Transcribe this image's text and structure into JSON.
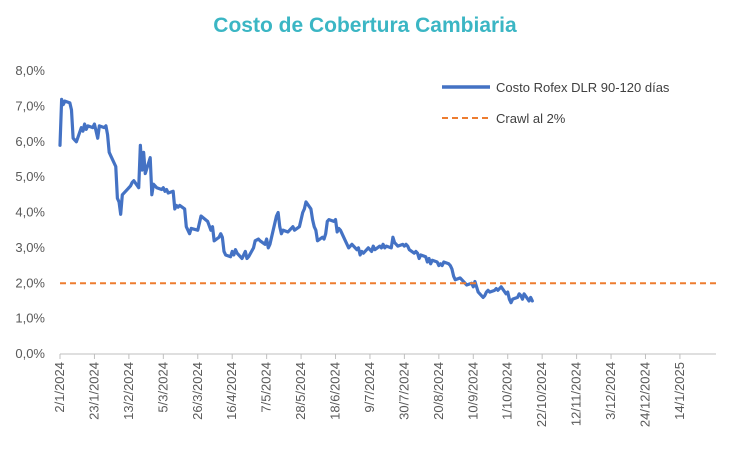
{
  "chart_data": {
    "type": "line",
    "title": "Costo de Cobertura Cambiaria",
    "xlabel": "",
    "ylabel": "",
    "ylim": [
      0,
      8
    ],
    "y_ticks": [
      "0,0%",
      "1,0%",
      "2,0%",
      "3,0%",
      "4,0%",
      "5,0%",
      "6,0%",
      "7,0%",
      "8,0%"
    ],
    "x_ticks": [
      "2/1/2024",
      "23/1/2024",
      "13/2/2024",
      "5/3/2024",
      "26/3/2024",
      "16/4/2024",
      "7/5/2024",
      "28/5/2024",
      "18/6/2024",
      "9/7/2024",
      "30/7/2024",
      "20/8/2024",
      "10/9/2024",
      "1/10/2024",
      "22/10/2024",
      "12/11/2024",
      "3/12/2024",
      "24/12/2024",
      "14/1/2025"
    ],
    "x_range": [
      "2/1/2024",
      "5/2/2025"
    ],
    "legend_position": "top-right",
    "grid": false,
    "series": [
      {
        "name": "Costo Rofex DLR 90-120 días",
        "color": "#4472c4",
        "style": "solid",
        "points": [
          [
            "2/1/2024",
            5.9
          ],
          [
            "3/1/2024",
            7.2
          ],
          [
            "4/1/2024",
            7.05
          ],
          [
            "5/1/2024",
            7.15
          ],
          [
            "8/1/2024",
            7.1
          ],
          [
            "9/1/2024",
            6.9
          ],
          [
            "10/1/2024",
            6.1
          ],
          [
            "11/1/2024",
            6.05
          ],
          [
            "12/1/2024",
            6.0
          ],
          [
            "15/1/2024",
            6.4
          ],
          [
            "16/1/2024",
            6.3
          ],
          [
            "17/1/2024",
            6.5
          ],
          [
            "18/1/2024",
            6.35
          ],
          [
            "19/1/2024",
            6.45
          ],
          [
            "22/1/2024",
            6.4
          ],
          [
            "23/1/2024",
            6.5
          ],
          [
            "24/1/2024",
            6.3
          ],
          [
            "25/1/2024",
            6.1
          ],
          [
            "26/1/2024",
            6.45
          ],
          [
            "29/1/2024",
            6.4
          ],
          [
            "30/1/2024",
            6.45
          ],
          [
            "31/1/2024",
            6.2
          ],
          [
            "1/2/2024",
            5.7
          ],
          [
            "2/2/2024",
            5.6
          ],
          [
            "5/2/2024",
            5.3
          ],
          [
            "6/2/2024",
            4.4
          ],
          [
            "7/2/2024",
            4.3
          ],
          [
            "8/2/2024",
            3.95
          ],
          [
            "9/2/2024",
            4.5
          ],
          [
            "14/2/2024",
            4.75
          ],
          [
            "15/2/2024",
            4.85
          ],
          [
            "16/2/2024",
            4.9
          ],
          [
            "19/2/2024",
            4.7
          ],
          [
            "20/2/2024",
            5.9
          ],
          [
            "21/2/2024",
            5.2
          ],
          [
            "22/2/2024",
            5.7
          ],
          [
            "23/2/2024",
            5.1
          ],
          [
            "26/2/2024",
            5.55
          ],
          [
            "27/2/2024",
            4.5
          ],
          [
            "28/2/2024",
            4.8
          ],
          [
            "29/2/2024",
            4.75
          ],
          [
            "1/3/2024",
            4.7
          ],
          [
            "4/3/2024",
            4.65
          ],
          [
            "5/3/2024",
            4.7
          ],
          [
            "6/3/2024",
            4.6
          ],
          [
            "7/3/2024",
            4.65
          ],
          [
            "8/3/2024",
            4.55
          ],
          [
            "11/3/2024",
            4.6
          ],
          [
            "12/3/2024",
            4.1
          ],
          [
            "13/3/2024",
            4.2
          ],
          [
            "14/3/2024",
            4.15
          ],
          [
            "15/3/2024",
            4.2
          ],
          [
            "18/3/2024",
            4.1
          ],
          [
            "19/3/2024",
            3.6
          ],
          [
            "20/3/2024",
            3.5
          ],
          [
            "21/3/2024",
            3.4
          ],
          [
            "22/3/2024",
            3.55
          ],
          [
            "26/3/2024",
            3.5
          ],
          [
            "27/3/2024",
            3.7
          ],
          [
            "28/3/2024",
            3.9
          ],
          [
            "1/4/2024",
            3.75
          ],
          [
            "3/4/2024",
            3.5
          ],
          [
            "4/4/2024",
            3.6
          ],
          [
            "5/4/2024",
            3.2
          ],
          [
            "8/4/2024",
            3.3
          ],
          [
            "9/4/2024",
            3.4
          ],
          [
            "10/4/2024",
            3.3
          ],
          [
            "11/4/2024",
            2.9
          ],
          [
            "12/4/2024",
            2.8
          ],
          [
            "15/4/2024",
            2.75
          ],
          [
            "16/4/2024",
            2.9
          ],
          [
            "17/4/2024",
            2.8
          ],
          [
            "18/4/2024",
            2.95
          ],
          [
            "19/4/2024",
            2.85
          ],
          [
            "22/4/2024",
            2.7
          ],
          [
            "23/4/2024",
            2.8
          ],
          [
            "24/4/2024",
            2.9
          ],
          [
            "25/4/2024",
            2.7
          ],
          [
            "26/4/2024",
            2.75
          ],
          [
            "29/4/2024",
            3.0
          ],
          [
            "30/4/2024",
            3.2
          ],
          [
            "2/5/2024",
            3.25
          ],
          [
            "3/5/2024",
            3.2
          ],
          [
            "6/5/2024",
            3.1
          ],
          [
            "7/5/2024",
            3.25
          ],
          [
            "8/5/2024",
            3.0
          ],
          [
            "9/5/2024",
            3.1
          ],
          [
            "10/5/2024",
            3.3
          ],
          [
            "13/5/2024",
            3.9
          ],
          [
            "14/5/2024",
            4.0
          ],
          [
            "15/5/2024",
            3.6
          ],
          [
            "16/5/2024",
            3.4
          ],
          [
            "17/5/2024",
            3.5
          ],
          [
            "20/5/2024",
            3.45
          ],
          [
            "21/5/2024",
            3.5
          ],
          [
            "22/5/2024",
            3.55
          ],
          [
            "23/5/2024",
            3.6
          ],
          [
            "24/5/2024",
            3.5
          ],
          [
            "27/5/2024",
            3.6
          ],
          [
            "28/5/2024",
            3.8
          ],
          [
            "29/5/2024",
            4.0
          ],
          [
            "30/5/2024",
            4.1
          ],
          [
            "31/5/2024",
            4.3
          ],
          [
            "3/6/2024",
            4.1
          ],
          [
            "4/6/2024",
            3.8
          ],
          [
            "5/6/2024",
            3.6
          ],
          [
            "6/6/2024",
            3.5
          ],
          [
            "7/6/2024",
            3.2
          ],
          [
            "10/6/2024",
            3.3
          ],
          [
            "11/6/2024",
            3.25
          ],
          [
            "12/6/2024",
            3.4
          ],
          [
            "13/6/2024",
            3.75
          ],
          [
            "14/6/2024",
            3.8
          ],
          [
            "17/6/2024",
            3.75
          ],
          [
            "18/6/2024",
            3.8
          ],
          [
            "19/6/2024",
            3.45
          ],
          [
            "20/6/2024",
            3.55
          ],
          [
            "21/6/2024",
            3.5
          ],
          [
            "24/6/2024",
            3.2
          ],
          [
            "25/6/2024",
            3.1
          ],
          [
            "26/6/2024",
            3.0
          ],
          [
            "27/6/2024",
            3.05
          ],
          [
            "28/6/2024",
            3.1
          ],
          [
            "1/7/2024",
            2.95
          ],
          [
            "2/7/2024",
            3.0
          ],
          [
            "3/7/2024",
            2.8
          ],
          [
            "4/7/2024",
            2.9
          ],
          [
            "5/7/2024",
            2.85
          ],
          [
            "8/7/2024",
            3.0
          ],
          [
            "10/7/2024",
            2.9
          ],
          [
            "11/7/2024",
            3.05
          ],
          [
            "12/7/2024",
            2.95
          ],
          [
            "15/7/2024",
            3.05
          ],
          [
            "16/7/2024",
            3.0
          ],
          [
            "17/7/2024",
            3.1
          ],
          [
            "18/7/2024",
            3.0
          ],
          [
            "19/7/2024",
            3.05
          ],
          [
            "22/7/2024",
            3.0
          ],
          [
            "23/7/2024",
            3.3
          ],
          [
            "24/7/2024",
            3.15
          ],
          [
            "25/7/2024",
            3.1
          ],
          [
            "26/7/2024",
            3.05
          ],
          [
            "29/7/2024",
            3.1
          ],
          [
            "30/7/2024",
            3.05
          ],
          [
            "31/7/2024",
            3.1
          ],
          [
            "1/8/2024",
            3.05
          ],
          [
            "2/8/2024",
            2.95
          ],
          [
            "5/8/2024",
            2.85
          ],
          [
            "6/8/2024",
            2.9
          ],
          [
            "7/8/2024",
            2.85
          ],
          [
            "8/8/2024",
            2.7
          ],
          [
            "9/8/2024",
            2.8
          ],
          [
            "12/8/2024",
            2.75
          ],
          [
            "13/8/2024",
            2.6
          ],
          [
            "14/8/2024",
            2.7
          ],
          [
            "15/8/2024",
            2.55
          ],
          [
            "16/8/2024",
            2.65
          ],
          [
            "19/8/2024",
            2.6
          ],
          [
            "20/8/2024",
            2.5
          ],
          [
            "21/8/2024",
            2.55
          ],
          [
            "22/8/2024",
            2.5
          ],
          [
            "23/8/2024",
            2.6
          ],
          [
            "26/8/2024",
            2.55
          ],
          [
            "27/8/2024",
            2.5
          ],
          [
            "28/8/2024",
            2.4
          ],
          [
            "29/8/2024",
            2.2
          ],
          [
            "30/8/2024",
            2.1
          ],
          [
            "2/9/2024",
            2.15
          ],
          [
            "3/9/2024",
            2.1
          ],
          [
            "4/9/2024",
            2.05
          ],
          [
            "5/9/2024",
            2.0
          ],
          [
            "6/9/2024",
            1.95
          ],
          [
            "9/9/2024",
            2.0
          ],
          [
            "10/9/2024",
            1.9
          ],
          [
            "11/9/2024",
            2.05
          ],
          [
            "12/9/2024",
            1.9
          ],
          [
            "13/9/2024",
            1.75
          ],
          [
            "16/9/2024",
            1.6
          ],
          [
            "17/9/2024",
            1.65
          ],
          [
            "18/9/2024",
            1.75
          ],
          [
            "19/9/2024",
            1.8
          ],
          [
            "20/9/2024",
            1.75
          ],
          [
            "23/9/2024",
            1.8
          ],
          [
            "24/9/2024",
            1.85
          ],
          [
            "25/9/2024",
            1.8
          ],
          [
            "26/9/2024",
            1.85
          ],
          [
            "27/9/2024",
            1.9
          ],
          [
            "30/9/2024",
            1.7
          ],
          [
            "1/10/2024",
            1.75
          ],
          [
            "2/10/2024",
            1.55
          ],
          [
            "3/10/2024",
            1.45
          ],
          [
            "4/10/2024",
            1.55
          ],
          [
            "7/10/2024",
            1.6
          ],
          [
            "8/10/2024",
            1.7
          ],
          [
            "9/10/2024",
            1.65
          ],
          [
            "10/10/2024",
            1.55
          ],
          [
            "11/10/2024",
            1.7
          ],
          [
            "14/10/2024",
            1.5
          ],
          [
            "15/10/2024",
            1.6
          ],
          [
            "16/10/2024",
            1.5
          ]
        ]
      },
      {
        "name": "Crawl al 2%",
        "color": "#ed7d31",
        "style": "dashed",
        "points": [
          [
            "2/1/2024",
            2.0
          ],
          [
            "5/2/2025",
            2.0
          ]
        ]
      }
    ]
  }
}
